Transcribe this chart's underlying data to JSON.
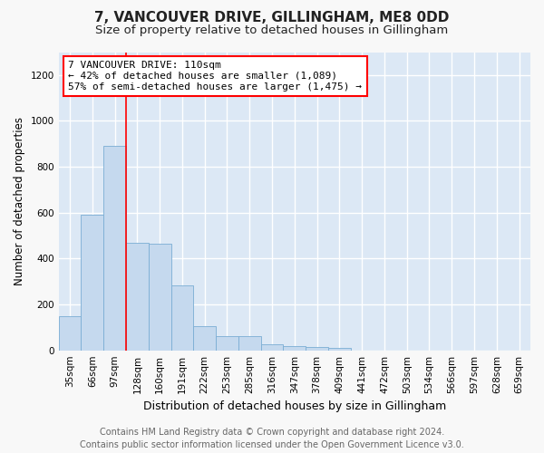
{
  "title": "7, VANCOUVER DRIVE, GILLINGHAM, ME8 0DD",
  "subtitle": "Size of property relative to detached houses in Gillingham",
  "xlabel": "Distribution of detached houses by size in Gillingham",
  "ylabel": "Number of detached properties",
  "bar_labels": [
    "35sqm",
    "66sqm",
    "97sqm",
    "128sqm",
    "160sqm",
    "191sqm",
    "222sqm",
    "253sqm",
    "285sqm",
    "316sqm",
    "347sqm",
    "378sqm",
    "409sqm",
    "441sqm",
    "472sqm",
    "503sqm",
    "534sqm",
    "566sqm",
    "597sqm",
    "628sqm",
    "659sqm"
  ],
  "bar_values": [
    150,
    590,
    890,
    470,
    465,
    285,
    105,
    62,
    60,
    25,
    18,
    15,
    12,
    0,
    0,
    0,
    0,
    0,
    0,
    0,
    0
  ],
  "bar_color": "#c5d9ee",
  "bar_edge_color": "#7aadd4",
  "annotation_text": "7 VANCOUVER DRIVE: 110sqm\n← 42% of detached houses are smaller (1,089)\n57% of semi-detached houses are larger (1,475) →",
  "vline_x": 2.5,
  "ylim": [
    0,
    1300
  ],
  "yticks": [
    0,
    200,
    400,
    600,
    800,
    1000,
    1200
  ],
  "fig_bg_color": "#f8f8f8",
  "plot_bg_color": "#dce8f5",
  "grid_color": "#ffffff",
  "footer_text": "Contains HM Land Registry data © Crown copyright and database right 2024.\nContains public sector information licensed under the Open Government Licence v3.0.",
  "title_fontsize": 11,
  "subtitle_fontsize": 9.5,
  "annotation_fontsize": 8,
  "ylabel_fontsize": 8.5,
  "xlabel_fontsize": 9,
  "footer_fontsize": 7,
  "tick_fontsize": 7.5
}
